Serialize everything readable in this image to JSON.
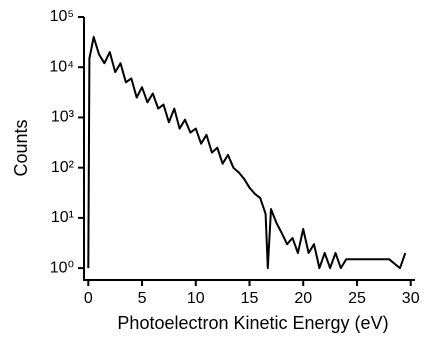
{
  "chart_data": {
    "type": "line",
    "xlabel": "Photoelectron Kinetic Energy (eV)",
    "ylabel": "Counts",
    "log_y": true,
    "color": "#000000",
    "xlim": [
      -0.4,
      30.4
    ],
    "ylim": [
      0.58,
      100000
    ],
    "xticks": [
      0,
      5,
      10,
      15,
      20,
      25,
      30
    ],
    "yticks": [
      {
        "value": 1,
        "label": "10⁰"
      },
      {
        "value": 10,
        "label": "10¹"
      },
      {
        "value": 100,
        "label": "10²"
      },
      {
        "value": 1000,
        "label": "10³"
      },
      {
        "value": 10000,
        "label": "10⁴"
      },
      {
        "value": 100000,
        "label": "10⁵"
      }
    ],
    "x": [
      0,
      0.1,
      0.5,
      1,
      1.5,
      2,
      2.5,
      3,
      3.5,
      4,
      4.5,
      5,
      5.5,
      6,
      6.5,
      7,
      7.5,
      8,
      8.5,
      9,
      9.5,
      10,
      10.5,
      11,
      11.5,
      12,
      12.5,
      13,
      13.5,
      14,
      14.5,
      15,
      15.5,
      16,
      16.5,
      16.7,
      17,
      17.5,
      18,
      18.5,
      19,
      19.5,
      20,
      20.5,
      21,
      21.5,
      22,
      22.5,
      23,
      23.5,
      24,
      25,
      26,
      27,
      28,
      29,
      29.5
    ],
    "values": [
      1,
      15000,
      40000,
      18000,
      12000,
      20000,
      8000,
      12000,
      5000,
      6000,
      2500,
      4000,
      2000,
      3000,
      1500,
      1800,
      800,
      1500,
      600,
      900,
      500,
      600,
      300,
      450,
      200,
      250,
      120,
      180,
      100,
      80,
      60,
      40,
      30,
      25,
      12,
      1,
      15,
      8,
      5,
      3,
      4,
      2,
      6,
      2,
      3,
      1,
      2,
      1,
      2,
      1,
      1.5,
      1.5,
      1.5,
      1.5,
      1.5,
      1,
      2
    ]
  }
}
